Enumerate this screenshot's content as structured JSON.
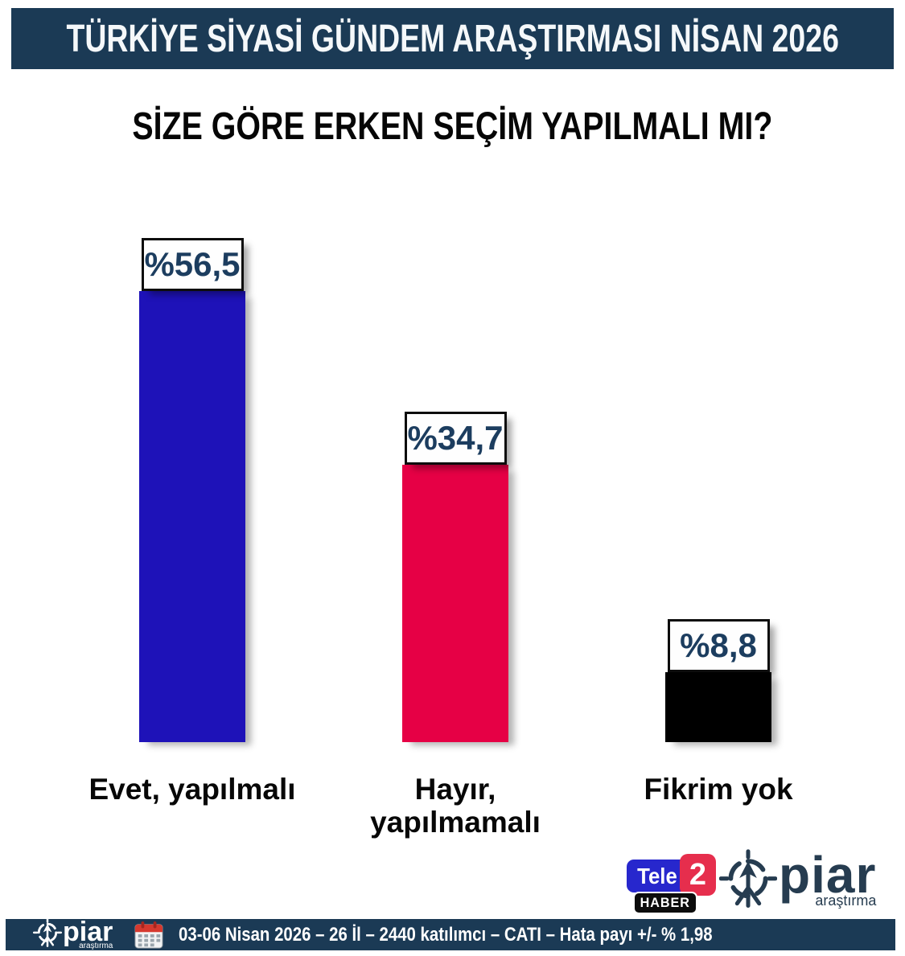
{
  "header": {
    "title": "TÜRKİYE SİYASİ GÜNDEM ARAŞTIRMASI NİSAN 2026",
    "bg": "#1b3a55"
  },
  "chart_data": {
    "type": "bar",
    "title": "SİZE GÖRE ERKEN SEÇİM YAPILMALI MI?",
    "categories": [
      "Evet, yapılmalı",
      "Hayır,\nyapılmamalı",
      "Fikrim yok"
    ],
    "values": [
      56.5,
      34.7,
      8.8
    ],
    "value_labels": [
      "%56,5",
      "%34,7",
      "%8,8"
    ],
    "bar_colors": [
      "#1e12b8",
      "#e60045",
      "#000000"
    ],
    "value_label_text_color": "#1c3d5f",
    "ylim": [
      0,
      60
    ],
    "grid": false,
    "legend": false,
    "xlabel": "",
    "ylabel": ""
  },
  "logos": {
    "tele2": {
      "part1": "Tele",
      "part2": "2",
      "part3": "HABER",
      "blue": "#2727cd",
      "red": "#e62e4d",
      "black": "#0c0c0c"
    },
    "piar": {
      "name": "piar",
      "sub": "araştırma",
      "color": "#263c50"
    }
  },
  "footer": {
    "bg": "#1b3a55",
    "piar": {
      "name": "piar",
      "sub": "araştırma"
    },
    "info": "03-06 Nisan 2026 – 26 İl – 2440 katılımcı – CATI – Hata payı +/- % 1,98"
  }
}
